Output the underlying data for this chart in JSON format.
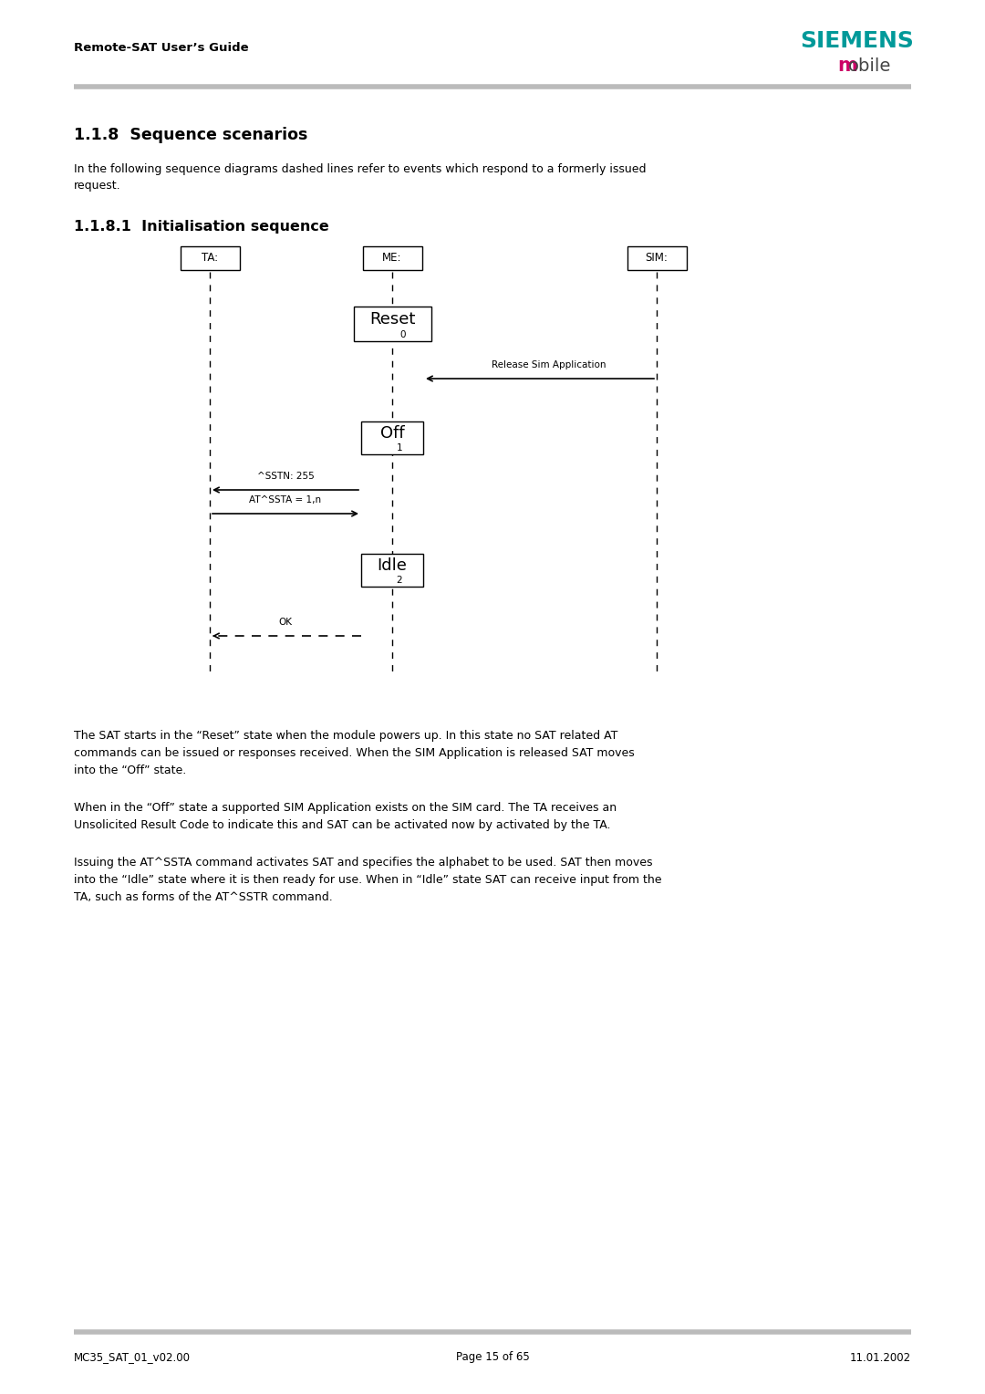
{
  "page_title": "Remote-SAT User’s Guide",
  "siemens_text": "SIEMENS",
  "mobile_text": "mobile",
  "siemens_color": "#009999",
  "mobile_m_color": "#cc0066",
  "mobile_rest_color": "#444444",
  "header_line_color": "#bbbbbb",
  "footer_line_color": "#bbbbbb",
  "section_title": "1.1.8  Sequence scenarios",
  "section_body_line1": "In the following sequence diagrams dashed lines refer to events which respond to a formerly issued",
  "section_body_line2": "request.",
  "subsection_title": "1.1.8.1  Initialisation sequence",
  "footer_left": "MC35_SAT_01_v02.00",
  "footer_center": "Page 15 of 65",
  "footer_right": "11.01.2002",
  "para1_lines": [
    "The SAT starts in the “Reset” state when the module powers up. In this state no SAT related AT",
    "commands can be issued or responses received. When the SIM Application is released SAT moves",
    "into the “Off” state."
  ],
  "para2_lines": [
    "When in the “Off” state a supported SIM Application exists on the SIM card. The TA receives an",
    "Unsolicited Result Code to indicate this and SAT can be activated now by activated by the TA."
  ],
  "para3_lines": [
    "Issuing the AT^SSTA command activates SAT and specifies the alphabet to be used. SAT then moves",
    "into the “Idle” state where it is then ready for use. When in “Idle” state SAT can receive input from the",
    "TA, such as forms of the AT^SSTR command."
  ]
}
